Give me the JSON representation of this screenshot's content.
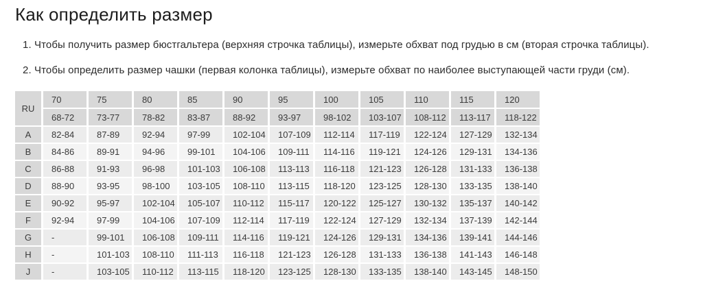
{
  "page": {
    "title": "Как определить размер"
  },
  "instructions": {
    "item1": "1. Чтобы получить размер бюстгальтера (верхняя строчка таблицы), измерьте обхват под грудью в см (вторая строчка таблицы).",
    "item2": "2. Чтобы определить размер чашки (первая колонка таблицы), измерьте обхват по наиболее выступающей части груди (см)."
  },
  "table": {
    "corner_label": "RU",
    "band_sizes": [
      "70",
      "75",
      "80",
      "85",
      "90",
      "95",
      "100",
      "105",
      "110",
      "115",
      "120"
    ],
    "underbust_ranges": [
      "68-72",
      "73-77",
      "78-82",
      "83-87",
      "88-92",
      "93-97",
      "98-102",
      "103-107",
      "108-112",
      "113-117",
      "118-122"
    ],
    "rows": [
      {
        "cup": "A",
        "values": [
          "82-84",
          "87-89",
          "92-94",
          "97-99",
          "102-104",
          "107-109",
          "112-114",
          "117-119",
          "122-124",
          "127-129",
          "132-134"
        ]
      },
      {
        "cup": "B",
        "values": [
          "84-86",
          "89-91",
          "94-96",
          "99-101",
          "104-106",
          "109-111",
          "114-116",
          "119-121",
          "124-126",
          "129-131",
          "134-136"
        ]
      },
      {
        "cup": "C",
        "values": [
          "86-88",
          "91-93",
          "96-98",
          "101-103",
          "106-108",
          "113-113",
          "116-118",
          "121-123",
          "126-128",
          "131-133",
          "136-138"
        ]
      },
      {
        "cup": "D",
        "values": [
          "88-90",
          "93-95",
          "98-100",
          "103-105",
          "108-110",
          "113-115",
          "118-120",
          "123-125",
          "128-130",
          "133-135",
          "138-140"
        ]
      },
      {
        "cup": "E",
        "values": [
          "90-92",
          "95-97",
          "102-104",
          "105-107",
          "110-112",
          "115-117",
          "120-122",
          "125-127",
          "130-132",
          "135-137",
          "140-142"
        ]
      },
      {
        "cup": "F",
        "values": [
          "92-94",
          "97-99",
          "104-106",
          "107-109",
          "112-114",
          "117-119",
          "122-124",
          "127-129",
          "132-134",
          "137-139",
          "142-144"
        ]
      },
      {
        "cup": "G",
        "values": [
          "-",
          "99-101",
          "106-108",
          "109-111",
          "114-116",
          "119-121",
          "124-126",
          "129-131",
          "134-136",
          "139-141",
          "144-146"
        ]
      },
      {
        "cup": "H",
        "values": [
          "-",
          "101-103",
          "108-110",
          "111-113",
          "116-118",
          "121-123",
          "126-128",
          "131-133",
          "136-138",
          "141-143",
          "146-148"
        ]
      },
      {
        "cup": "J",
        "values": [
          "-",
          "103-105",
          "110-112",
          "113-115",
          "118-120",
          "123-125",
          "128-130",
          "133-135",
          "138-140",
          "143-145",
          "148-150"
        ]
      }
    ],
    "colors": {
      "header_bg": "#d8d8d8",
      "row_odd_bg": "#ececec",
      "row_even_bg": "#f4f4f4",
      "text": "#3a3a3a"
    }
  }
}
